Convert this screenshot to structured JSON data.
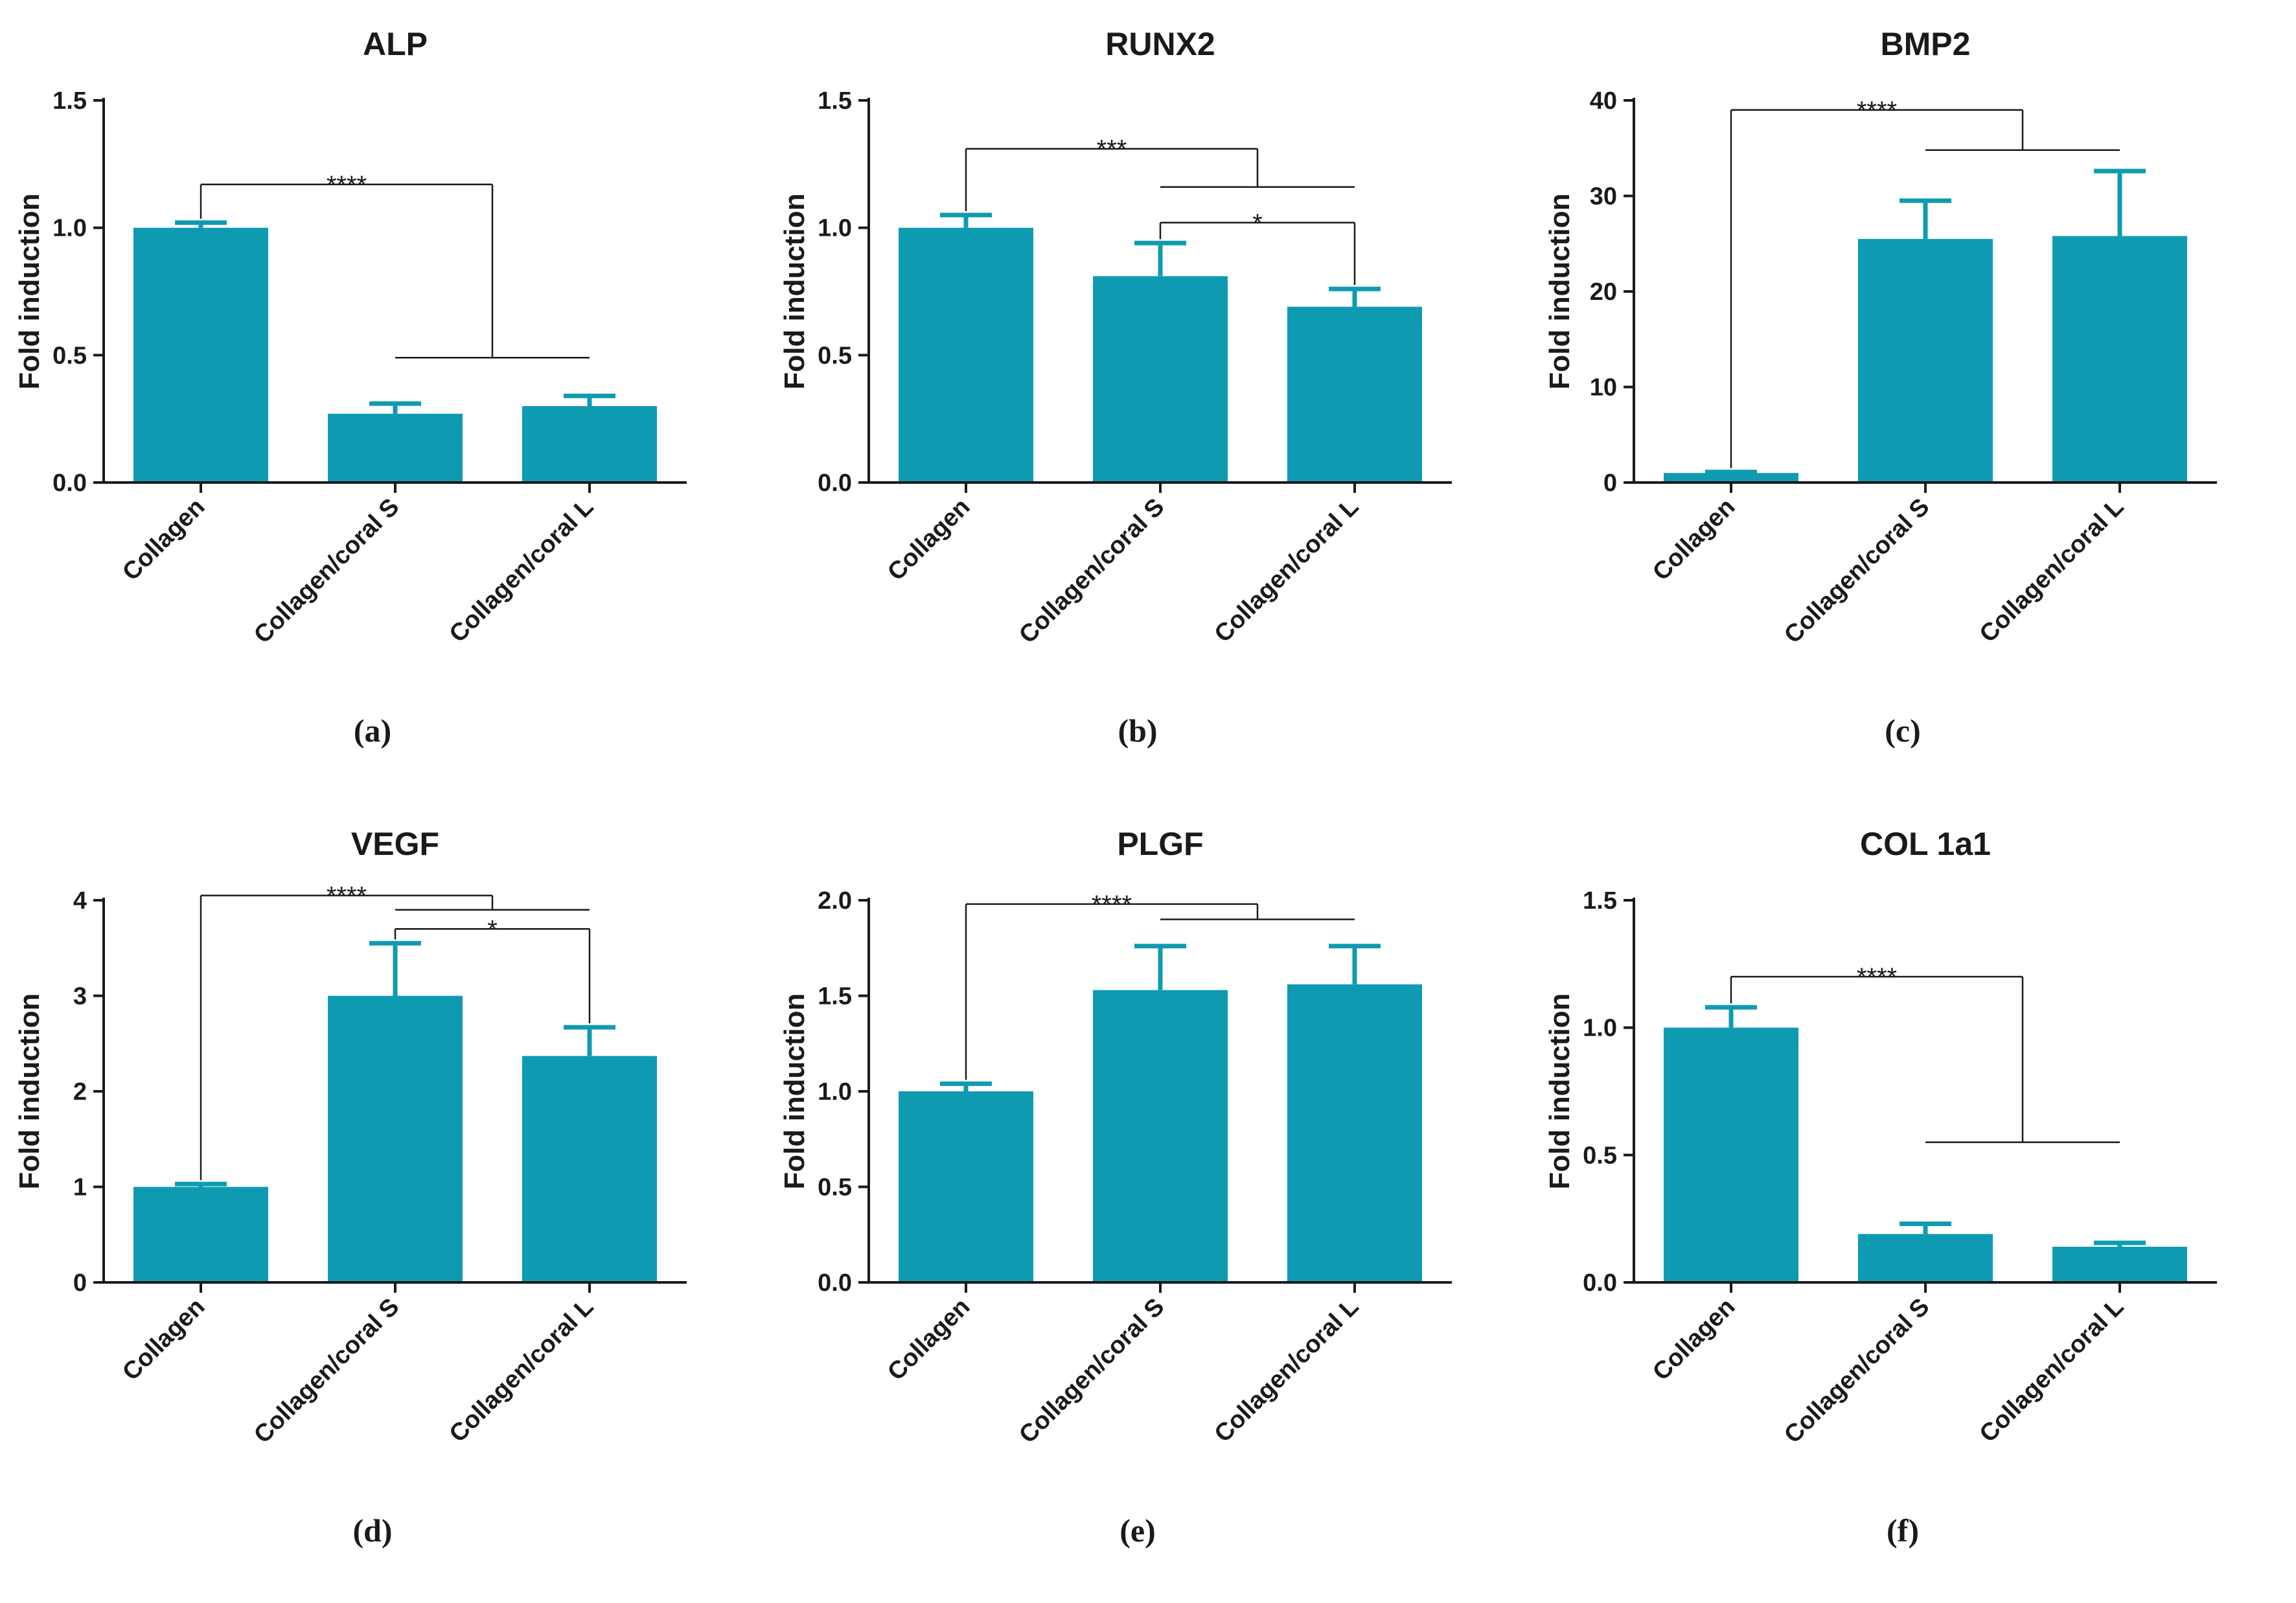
{
  "colors": {
    "bar": "#0e9bb2",
    "axis": "#1a1a1a",
    "bracket": "#1a1a1a"
  },
  "chart_data": [
    {
      "type": "bar",
      "panel_label": "(a)",
      "title": "ALP",
      "ylabel": "Fold induction",
      "xlabel": "",
      "categories": [
        "Collagen",
        "Collagen/coral S",
        "Collagen/coral L"
      ],
      "values": [
        1.0,
        0.27,
        0.3
      ],
      "errors": [
        0.02,
        0.04,
        0.04
      ],
      "ylim": [
        0,
        1.5
      ],
      "yticks": [
        0,
        0.5,
        1.0,
        1.5
      ],
      "ytick_labels": [
        "0.0",
        "0.5",
        "1.0",
        "1.5"
      ],
      "significance": [
        {
          "label": "****",
          "from": 0,
          "to": [
            1,
            2
          ],
          "level": 1.17,
          "group_level": 0.49,
          "label_level": 1.24
        }
      ]
    },
    {
      "type": "bar",
      "panel_label": "(b)",
      "title": "RUNX2",
      "ylabel": "Fold induction",
      "xlabel": "",
      "categories": [
        "Collagen",
        "Collagen/coral S",
        "Collagen/coral L"
      ],
      "values": [
        1.0,
        0.81,
        0.69
      ],
      "errors": [
        0.05,
        0.13,
        0.07
      ],
      "ylim": [
        0,
        1.5
      ],
      "yticks": [
        0,
        0.5,
        1.0,
        1.5
      ],
      "ytick_labels": [
        "0.0",
        "0.5",
        "1.0",
        "1.5"
      ],
      "significance": [
        {
          "label": "***",
          "from": 0,
          "to": [
            1,
            2
          ],
          "level": 1.31,
          "group_level": 1.16,
          "label_level": 1.38
        },
        {
          "label": "*",
          "from": 1,
          "to": [
            2
          ],
          "level": 1.02,
          "label_level": 1.05
        }
      ]
    },
    {
      "type": "bar",
      "panel_label": "(c)",
      "title": "BMP2",
      "ylabel": "Fold induction",
      "xlabel": "",
      "categories": [
        "Collagen",
        "Collagen/coral S",
        "Collagen/coral L"
      ],
      "values": [
        1.0,
        25.5,
        25.8
      ],
      "errors": [
        0.1,
        4.0,
        6.8
      ],
      "ylim": [
        0,
        40
      ],
      "yticks": [
        0,
        10,
        20,
        30,
        40
      ],
      "ytick_labels": [
        "0",
        "10",
        "20",
        "30",
        "40"
      ],
      "significance": [
        {
          "label": "****",
          "from": 0,
          "to": [
            1,
            2
          ],
          "level": 39.0,
          "group_level": 34.8,
          "label_level": 40.5
        }
      ]
    },
    {
      "type": "bar",
      "panel_label": "(d)",
      "title": "VEGF",
      "ylabel": "Fold induction",
      "xlabel": "",
      "categories": [
        "Collagen",
        "Collagen/coral S",
        "Collagen/coral L"
      ],
      "values": [
        1.0,
        3.0,
        2.37
      ],
      "errors": [
        0.03,
        0.55,
        0.3
      ],
      "ylim": [
        0,
        4
      ],
      "yticks": [
        0,
        1,
        2,
        3,
        4
      ],
      "ytick_labels": [
        "0",
        "1",
        "2",
        "3",
        "4"
      ],
      "significance": [
        {
          "label": "****",
          "from": 0,
          "to": [
            1,
            2
          ],
          "level": 4.05,
          "group_level": 3.9,
          "label_level": 4.13
        },
        {
          "label": "*",
          "from": 1,
          "to": [
            2
          ],
          "level": 3.7,
          "label_level": 3.78
        }
      ]
    },
    {
      "type": "bar",
      "panel_label": "(e)",
      "title": "PLGF",
      "ylabel": "Fold induction",
      "xlabel": "",
      "categories": [
        "Collagen",
        "Collagen/coral S",
        "Collagen/coral L"
      ],
      "values": [
        1.0,
        1.53,
        1.56
      ],
      "errors": [
        0.04,
        0.23,
        0.2
      ],
      "ylim": [
        0,
        2.0
      ],
      "yticks": [
        0,
        0.5,
        1.0,
        1.5,
        2.0
      ],
      "ytick_labels": [
        "0.0",
        "0.5",
        "1.0",
        "1.5",
        "2.0"
      ],
      "significance": [
        {
          "label": "****",
          "from": 0,
          "to": [
            1,
            2
          ],
          "level": 1.98,
          "group_level": 1.9,
          "label_level": 2.03
        }
      ]
    },
    {
      "type": "bar",
      "panel_label": "(f)",
      "title": "COL 1a1",
      "ylabel": "Fold induction",
      "xlabel": "",
      "categories": [
        "Collagen",
        "Collagen/coral S",
        "Collagen/coral L"
      ],
      "values": [
        1.0,
        0.19,
        0.14
      ],
      "errors": [
        0.08,
        0.04,
        0.015
      ],
      "ylim": [
        0,
        1.5
      ],
      "yticks": [
        0,
        0.5,
        1.0,
        1.5
      ],
      "ytick_labels": [
        "0.0",
        "0.5",
        "1.0",
        "1.5"
      ],
      "significance": [
        {
          "label": "****",
          "from": 0,
          "to": [
            1,
            2
          ],
          "level": 1.2,
          "group_level": 0.55,
          "label_level": 1.27
        }
      ]
    }
  ]
}
